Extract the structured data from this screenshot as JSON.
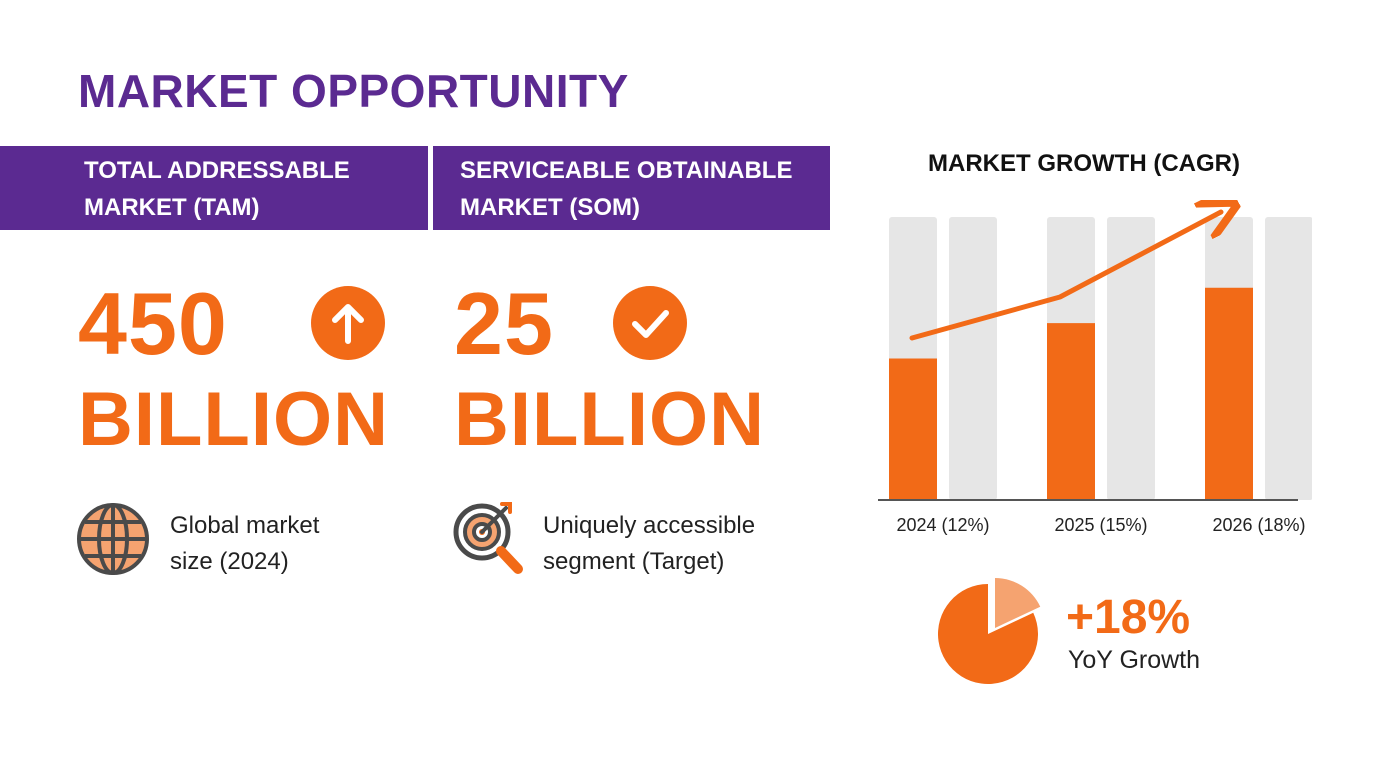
{
  "page": {
    "title": "MARKET OPPORTUNITY"
  },
  "tam": {
    "banner_line1": "TOTAL ADDRESSABLE",
    "banner_line2": "MARKET (TAM)",
    "value": "450",
    "unit": "BILLION",
    "badge_icon": "arrow-up-icon",
    "desc_icon": "globe-icon",
    "desc_line1": "Global market",
    "desc_line2": "size (2024)"
  },
  "som": {
    "banner_line1": "SERVICEABLE OBTAINABLE",
    "banner_line2": "MARKET (SOM)",
    "value": "25",
    "unit": "BILLION",
    "badge_icon": "checkmark-icon",
    "desc_icon": "target-search-icon",
    "desc_line1": "Uniquely accessible",
    "desc_line2": "segment (Target)"
  },
  "colors": {
    "purple": "#5b2a91",
    "orange": "#f26a17",
    "light_orange": "#f5a370",
    "track_gray": "#e6e6e6"
  },
  "chart_data": {
    "type": "bar",
    "title": "MARKET GROWTH (CAGR)",
    "categories": [
      "2024 (12%)",
      "2025 (15%)",
      "2026 (18%)"
    ],
    "series": [
      {
        "name": "CAGR",
        "values": [
          12,
          15,
          18
        ]
      }
    ],
    "ylim": [
      0,
      24
    ],
    "trend_arrow": true,
    "xlabel": "",
    "ylabel": ""
  },
  "growth": {
    "value": "+18%",
    "label": "YoY Growth",
    "pie_highlight_percent": 18
  }
}
